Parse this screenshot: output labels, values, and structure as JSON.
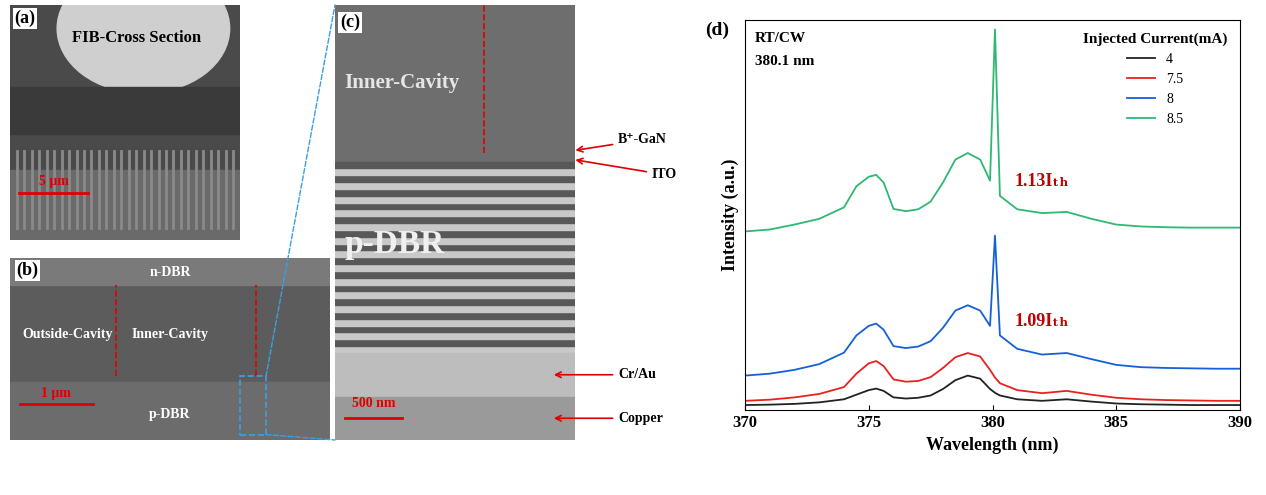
{
  "images": [
    {
      "panel": "(a)",
      "title": "FIB-Cross Section",
      "scale_bar": "5 μm"
    },
    {
      "panel": "(b)",
      "labels": [
        "n-DBR",
        "Outside-Cavity",
        "Inner-Cavity",
        "p-DBR"
      ],
      "scale_bar": "1 μm"
    },
    {
      "panel": "(c)",
      "labels": [
        "Inner-Cavity",
        "p-DBR"
      ],
      "callouts": [
        "B⁺-GaN",
        "ITO",
        "Cr/Au",
        "Copper"
      ],
      "scale_bar": "500 nm"
    }
  ],
  "chart_data": {
    "panel": "(d)",
    "type": "line",
    "x_label": "Wavelength (nm)",
    "y_label": "Intensity (a.u.)",
    "text_annotations": [
      "RT/CW",
      "380.1 nm"
    ],
    "legend_title": "Injected Current(mA)",
    "legend": "upper right",
    "x": [
      370,
      371,
      372,
      373,
      374,
      374.5,
      375,
      375.3,
      375.6,
      376,
      376.5,
      377,
      377.5,
      378,
      378.5,
      379,
      379.5,
      379.9,
      380.1,
      380.3,
      381,
      382,
      383,
      384,
      385,
      386,
      387,
      388,
      389,
      390
    ],
    "series": [
      {
        "name": "4",
        "color": "#222222",
        "values": [
          0.13,
          0.14,
          0.16,
          0.2,
          0.28,
          0.4,
          0.52,
          0.56,
          0.5,
          0.33,
          0.3,
          0.32,
          0.38,
          0.55,
          0.78,
          0.9,
          0.82,
          0.55,
          0.45,
          0.38,
          0.28,
          0.24,
          0.28,
          0.22,
          0.17,
          0.15,
          0.14,
          0.13,
          0.13,
          0.13
        ]
      },
      {
        "name": "7.5",
        "color": "#e8211e",
        "values": [
          0.24,
          0.27,
          0.33,
          0.42,
          0.6,
          0.95,
          1.22,
          1.28,
          1.15,
          0.8,
          0.74,
          0.76,
          0.86,
          1.1,
          1.38,
          1.49,
          1.4,
          1.05,
          0.85,
          0.7,
          0.52,
          0.44,
          0.5,
          0.4,
          0.32,
          0.28,
          0.26,
          0.25,
          0.24,
          0.24
        ]
      },
      {
        "name": "8",
        "color": "#1560d8",
        "threshold_label": "1.09Iₜₕ",
        "values": [
          0.9,
          0.95,
          1.05,
          1.2,
          1.5,
          1.95,
          2.2,
          2.26,
          2.1,
          1.67,
          1.62,
          1.66,
          1.8,
          2.15,
          2.6,
          2.74,
          2.6,
          2.2,
          4.56,
          1.95,
          1.6,
          1.45,
          1.49,
          1.33,
          1.18,
          1.12,
          1.1,
          1.09,
          1.08,
          1.08
        ]
      },
      {
        "name": "8.5",
        "color": "#2eb872",
        "threshold_label": "1.13Iₜₕ",
        "values": [
          4.67,
          4.72,
          4.85,
          5.0,
          5.3,
          5.85,
          6.1,
          6.15,
          5.95,
          5.26,
          5.2,
          5.25,
          5.45,
          5.95,
          6.55,
          6.72,
          6.55,
          6.0,
          9.95,
          5.6,
          5.25,
          5.15,
          5.18,
          5.0,
          4.85,
          4.8,
          4.78,
          4.77,
          4.77,
          4.77
        ]
      }
    ],
    "xlim": [
      370,
      390
    ],
    "xticks": [
      370,
      375,
      380,
      385,
      390
    ],
    "ylim": [
      0,
      10.2
    ],
    "tick_labels": "x"
  }
}
